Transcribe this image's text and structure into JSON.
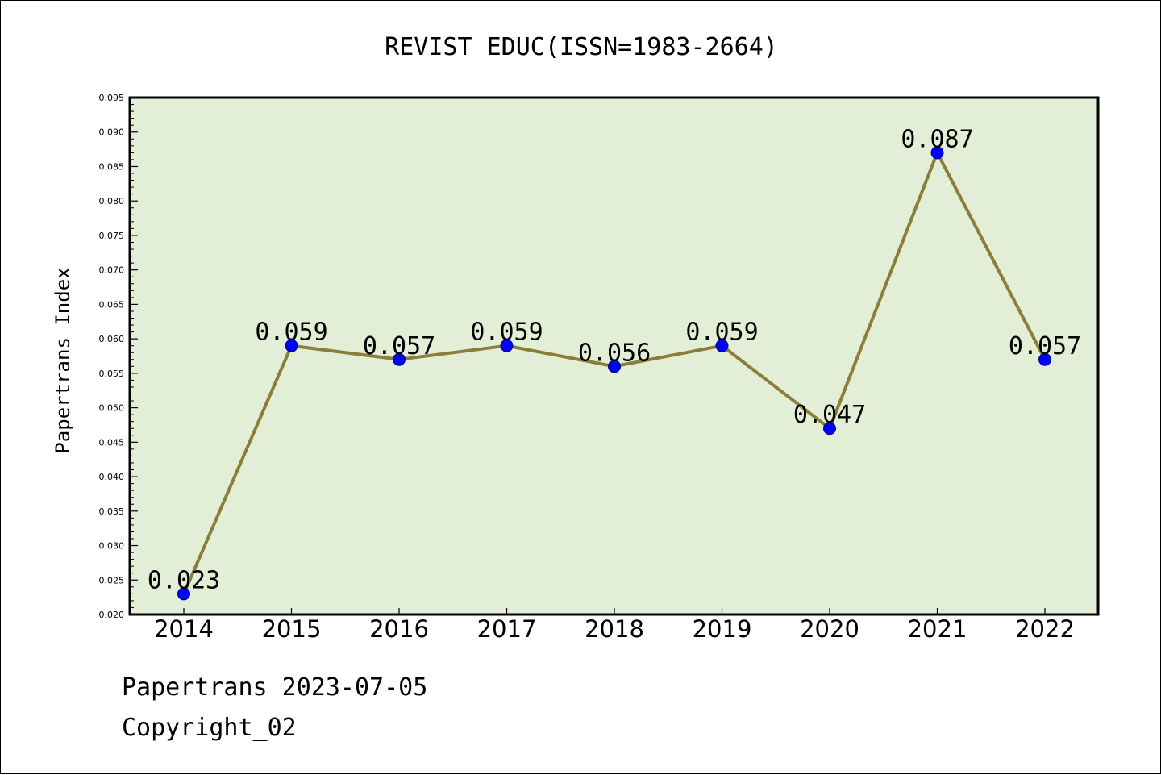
{
  "footer": {
    "generated": "Papertrans 2023-07-05",
    "copyright": "Copyright_02"
  },
  "colors": {
    "plot_background": "#e2efd6",
    "line": "#8b7d3a",
    "marker": "#0000ff",
    "axis": "#000000"
  },
  "chart_data": {
    "type": "line",
    "title": "REVIST EDUC(ISSN=1983-2664)",
    "xlabel": "",
    "ylabel": "Papertrans Index",
    "categories": [
      "2014",
      "2015",
      "2016",
      "2017",
      "2018",
      "2019",
      "2020",
      "2021",
      "2022"
    ],
    "series": [
      {
        "values": [
          0.023,
          0.059,
          0.057,
          0.059,
          0.056,
          0.059,
          0.047,
          0.087,
          0.057
        ],
        "labels": [
          "0.023",
          "0.059",
          "0.057",
          "0.059",
          "0.056",
          "0.059",
          "0.047",
          "0.087",
          "0.057"
        ]
      }
    ],
    "ylim": [
      0.02,
      0.095
    ],
    "yticks": [
      "0.020",
      "0.025",
      "0.030",
      "0.035",
      "0.040",
      "0.045",
      "0.050",
      "0.055",
      "0.060",
      "0.065",
      "0.070",
      "0.075",
      "0.080",
      "0.085",
      "0.090",
      "0.095"
    ],
    "grid": false,
    "legend": "none"
  }
}
